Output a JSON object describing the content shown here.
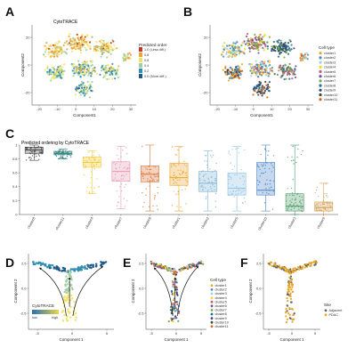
{
  "figure": {
    "panel_letters": [
      "A",
      "B",
      "C",
      "D",
      "E",
      "F"
    ]
  },
  "palette": {
    "cytotrace": [
      "#1f5a8a",
      "#2f8fb0",
      "#9fcfa3",
      "#f4e36b",
      "#f0a23a",
      "#c0392b"
    ],
    "clusters": [
      "#e7a72b",
      "#4c8fb8",
      "#a6cee3",
      "#f6d32d",
      "#c95c6a",
      "#7a4e9b",
      "#6fb24c",
      "#1f6f9b",
      "#2e4a7a",
      "#444444",
      "#d46a1e"
    ],
    "site": {
      "Adjacent": "#666666",
      "PDAC": "#e7a72b"
    },
    "cytotrace_gradient": [
      "#2a6fb0",
      "#e6d84a"
    ]
  },
  "panel_a": {
    "title": "CytoTRACE",
    "xlabel": "Component1",
    "ylabel": "Component2",
    "x_ticks": [
      "-20",
      "-10",
      "0",
      "10",
      "20",
      "30"
    ],
    "y_ticks": [
      "-20",
      "0",
      "20"
    ],
    "legend_title": "Predicted order",
    "legend_labels": [
      "1.0 (Less diff.)",
      "0.8",
      "0.6",
      "0.4",
      "0.2",
      "0.0 (More diff.)"
    ]
  },
  "panel_b": {
    "xlabel": "Component1",
    "ylabel": "Component2",
    "x_ticks": [
      "-20",
      "-10",
      "0",
      "10",
      "20",
      "30"
    ],
    "y_ticks": [
      "-20",
      "0",
      "20"
    ],
    "legend_title": "Cell type",
    "legend_labels": [
      "cluster1",
      "cluster2",
      "cluster3",
      "cluster4",
      "cluster5",
      "cluster6",
      "cluster7",
      "cluster8",
      "cluster9",
      "cluster10",
      "cluster11"
    ]
  },
  "panel_d": {
    "xlabel": "Component 1",
    "ylabel": "Component 2",
    "x_ticks": [
      "-5",
      "0",
      "5"
    ],
    "y_ticks": [
      "-2.5",
      "0.0",
      "2.5"
    ],
    "legend_title": "CytoTRACE",
    "legend_low": "low",
    "legend_high": "high"
  },
  "panel_e": {
    "xlabel": "Component 1",
    "ylabel": "Component 2",
    "x_ticks": [
      "-5",
      "0",
      "5"
    ],
    "y_ticks": [
      "-2.5",
      "0.0",
      "2.5"
    ],
    "legend_title": "Cell type",
    "legend_labels": [
      "cluster1",
      "cluster2",
      "cluster3",
      "cluster4",
      "cluster5",
      "cluster6",
      "cluster7",
      "cluster8",
      "cluster9",
      "cluster10",
      "cluster11"
    ]
  },
  "panel_f": {
    "xlabel": "Component 1",
    "ylabel": "Component 2",
    "x_ticks": [
      "-5",
      "0",
      "5"
    ],
    "y_ticks": [
      "-2.5",
      "0.0",
      "2.5"
    ],
    "legend_title": "Site",
    "legend_labels": [
      "Adjacent",
      "PDAC"
    ]
  },
  "chart_data": {
    "type": "box",
    "title": "Predicted ordering by CytoTRACE",
    "xlabel": "",
    "ylabel": "",
    "ylim": [
      0,
      1
    ],
    "y_ticks": [
      "0",
      "0.2",
      "0.4",
      "0.6",
      "0.8",
      "1"
    ],
    "grid": false,
    "categories": [
      "cluster8",
      "cluster11",
      "cluster4",
      "cluster7",
      "cluster6",
      "cluster1",
      "cluster2",
      "cluster5",
      "cluster10",
      "cluster3",
      "cluster9"
    ],
    "colors": [
      "#444444",
      "#2e7f7a",
      "#f2cc3c",
      "#e59ab4",
      "#d9753a",
      "#eaa42a",
      "#7fb3d5",
      "#8fc1e3",
      "#4e86c6",
      "#4f9a6a",
      "#d4a25a"
    ],
    "series": [
      {
        "stats": [
          {
            "min": 0.78,
            "q1": 0.88,
            "median": 0.93,
            "q3": 0.97,
            "max": 1.0
          },
          {
            "min": 0.8,
            "q1": 0.86,
            "median": 0.88,
            "q3": 0.91,
            "max": 0.94
          },
          {
            "min": 0.3,
            "q1": 0.68,
            "median": 0.75,
            "q3": 0.83,
            "max": 0.92
          },
          {
            "min": 0.08,
            "q1": 0.48,
            "median": 0.62,
            "q3": 0.76,
            "max": 0.98
          },
          {
            "min": 0.05,
            "q1": 0.47,
            "median": 0.58,
            "q3": 0.7,
            "max": 1.0
          },
          {
            "min": 0.05,
            "q1": 0.42,
            "median": 0.53,
            "q3": 0.74,
            "max": 0.98
          },
          {
            "min": 0.05,
            "q1": 0.33,
            "median": 0.45,
            "q3": 0.62,
            "max": 0.92
          },
          {
            "min": 0.05,
            "q1": 0.28,
            "median": 0.38,
            "q3": 0.6,
            "max": 0.98
          },
          {
            "min": 0.05,
            "q1": 0.28,
            "median": 0.35,
            "q3": 0.75,
            "max": 1.0
          },
          {
            "min": 0.0,
            "q1": 0.05,
            "median": 0.12,
            "q3": 0.3,
            "max": 1.0
          },
          {
            "min": 0.0,
            "q1": 0.05,
            "median": 0.1,
            "q3": 0.18,
            "max": 0.45
          }
        ]
      }
    ]
  }
}
